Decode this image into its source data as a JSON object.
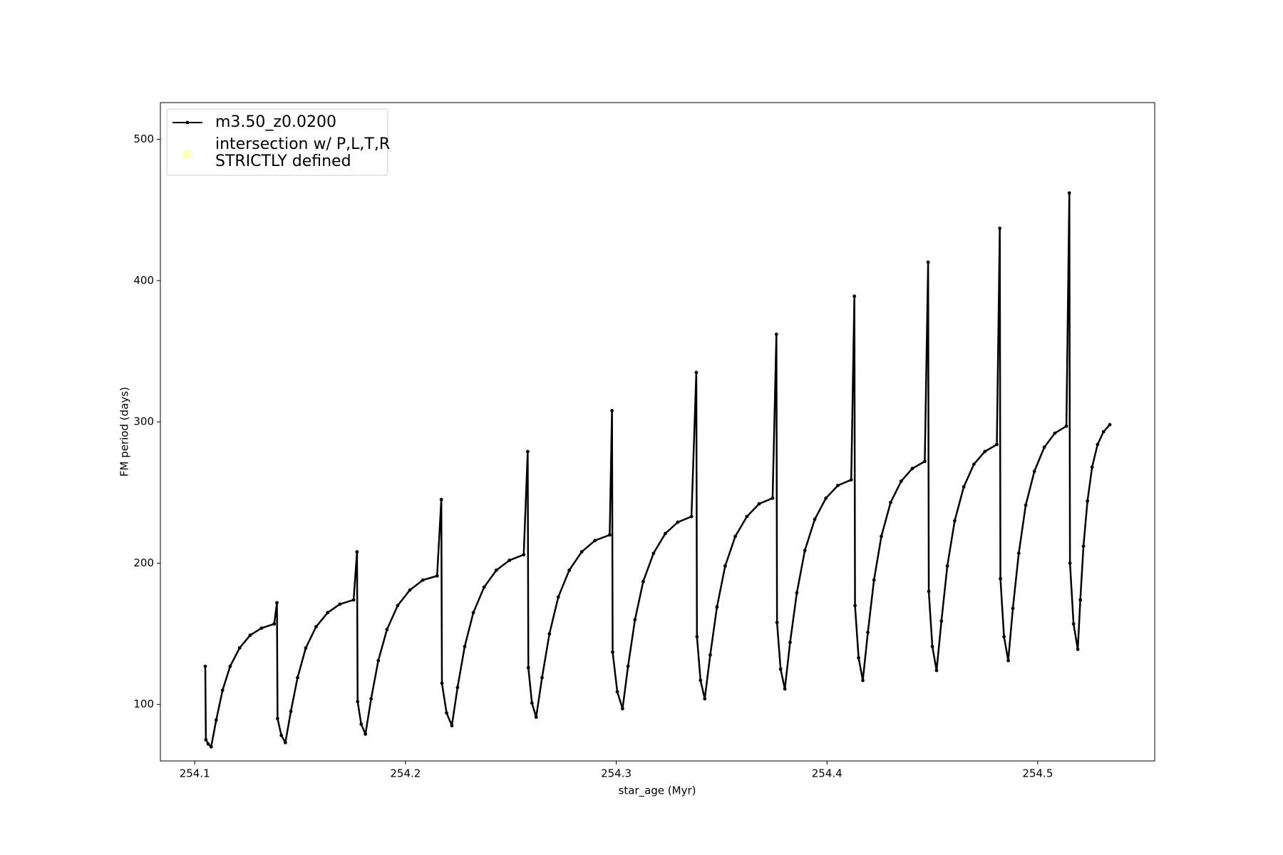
{
  "chart_data": {
    "type": "line",
    "xlabel": "star_age (Myr)",
    "ylabel": "FM period (days)",
    "xlim": [
      254.0837,
      254.5555
    ],
    "ylim": [
      60,
      526
    ],
    "xticks": [
      254.1,
      254.2,
      254.3,
      254.4,
      254.5
    ],
    "yticks": [
      100,
      200,
      300,
      400,
      500
    ],
    "grid": false,
    "legend": "upper left",
    "series": [
      {
        "name": "m3.50_z0.0200",
        "color": "#000000",
        "x": [
          254.105,
          254.1053,
          254.1064,
          254.1078,
          254.1102,
          254.1132,
          254.1168,
          254.1213,
          254.1263,
          254.1317,
          254.1377,
          254.139,
          254.1393,
          254.1411,
          254.143,
          254.1456,
          254.1488,
          254.1527,
          254.1576,
          254.1631,
          254.1689,
          254.1754,
          254.177,
          254.1773,
          254.179,
          254.181,
          254.1837,
          254.1871,
          254.1912,
          254.1963,
          254.2021,
          254.2082,
          254.215,
          254.217,
          254.2173,
          254.2195,
          254.222,
          254.2247,
          254.2281,
          254.2322,
          254.2373,
          254.2431,
          254.2493,
          254.2561,
          254.258,
          254.2583,
          254.26,
          254.262,
          254.2648,
          254.2683,
          254.2725,
          254.2777,
          254.2836,
          254.2899,
          254.2969,
          254.298,
          254.2983,
          254.3005,
          254.303,
          254.3056,
          254.3089,
          254.3128,
          254.3177,
          254.3233,
          254.3292,
          254.3357,
          254.338,
          254.3383,
          254.34,
          254.342,
          254.3446,
          254.3478,
          254.3517,
          254.3565,
          254.362,
          254.3678,
          254.3742,
          254.376,
          254.3763,
          254.378,
          254.38,
          254.3825,
          254.3857,
          254.3895,
          254.3942,
          254.3995,
          254.4052,
          254.4115,
          254.413,
          254.4133,
          254.415,
          254.417,
          254.4194,
          254.4223,
          254.4258,
          254.4302,
          254.4352,
          254.4405,
          254.4464,
          254.448,
          254.4483,
          254.45,
          254.452,
          254.4543,
          254.4571,
          254.4606,
          254.4649,
          254.4697,
          254.4749,
          254.4806,
          254.482,
          254.4823,
          254.484,
          254.486,
          254.4882,
          254.491,
          254.4943,
          254.4984,
          254.5031,
          254.5081,
          254.5136,
          254.515,
          254.5153,
          254.517,
          254.519,
          254.5202,
          254.5217,
          254.5236,
          254.5258,
          254.5284,
          254.5312,
          254.5342
        ],
        "values": [
          127,
          75,
          72,
          70,
          89,
          110,
          127,
          140,
          149,
          154,
          157,
          172,
          90,
          78,
          73,
          95,
          119,
          140,
          155,
          165,
          171,
          174,
          208,
          102,
          86,
          79,
          104,
          131,
          153,
          170,
          181,
          188,
          191,
          245,
          115,
          94,
          85,
          112,
          141,
          165,
          183,
          195,
          202,
          206,
          279,
          126,
          101,
          91,
          119,
          150,
          176,
          195,
          208,
          216,
          220,
          308,
          137,
          109,
          97,
          127,
          160,
          187,
          207,
          221,
          229,
          233,
          335,
          148,
          117,
          104,
          135,
          169,
          198,
          219,
          233,
          242,
          246,
          362,
          158,
          125,
          111,
          144,
          179,
          209,
          231,
          246,
          255,
          259,
          389,
          170,
          133,
          117,
          151,
          188,
          219,
          243,
          258,
          267,
          272,
          413,
          180,
          141,
          124,
          159,
          198,
          230,
          254,
          270,
          279,
          284,
          437,
          189,
          148,
          131,
          168,
          207,
          241,
          265,
          282,
          292,
          297,
          462,
          200,
          157,
          139,
          174,
          212,
          244,
          268,
          284,
          293,
          298
        ]
      },
      {
        "name": "intersection w/ P,L,T,R\nSTRICTLY defined",
        "color": "#ffffb3",
        "x": [],
        "values": []
      }
    ]
  }
}
